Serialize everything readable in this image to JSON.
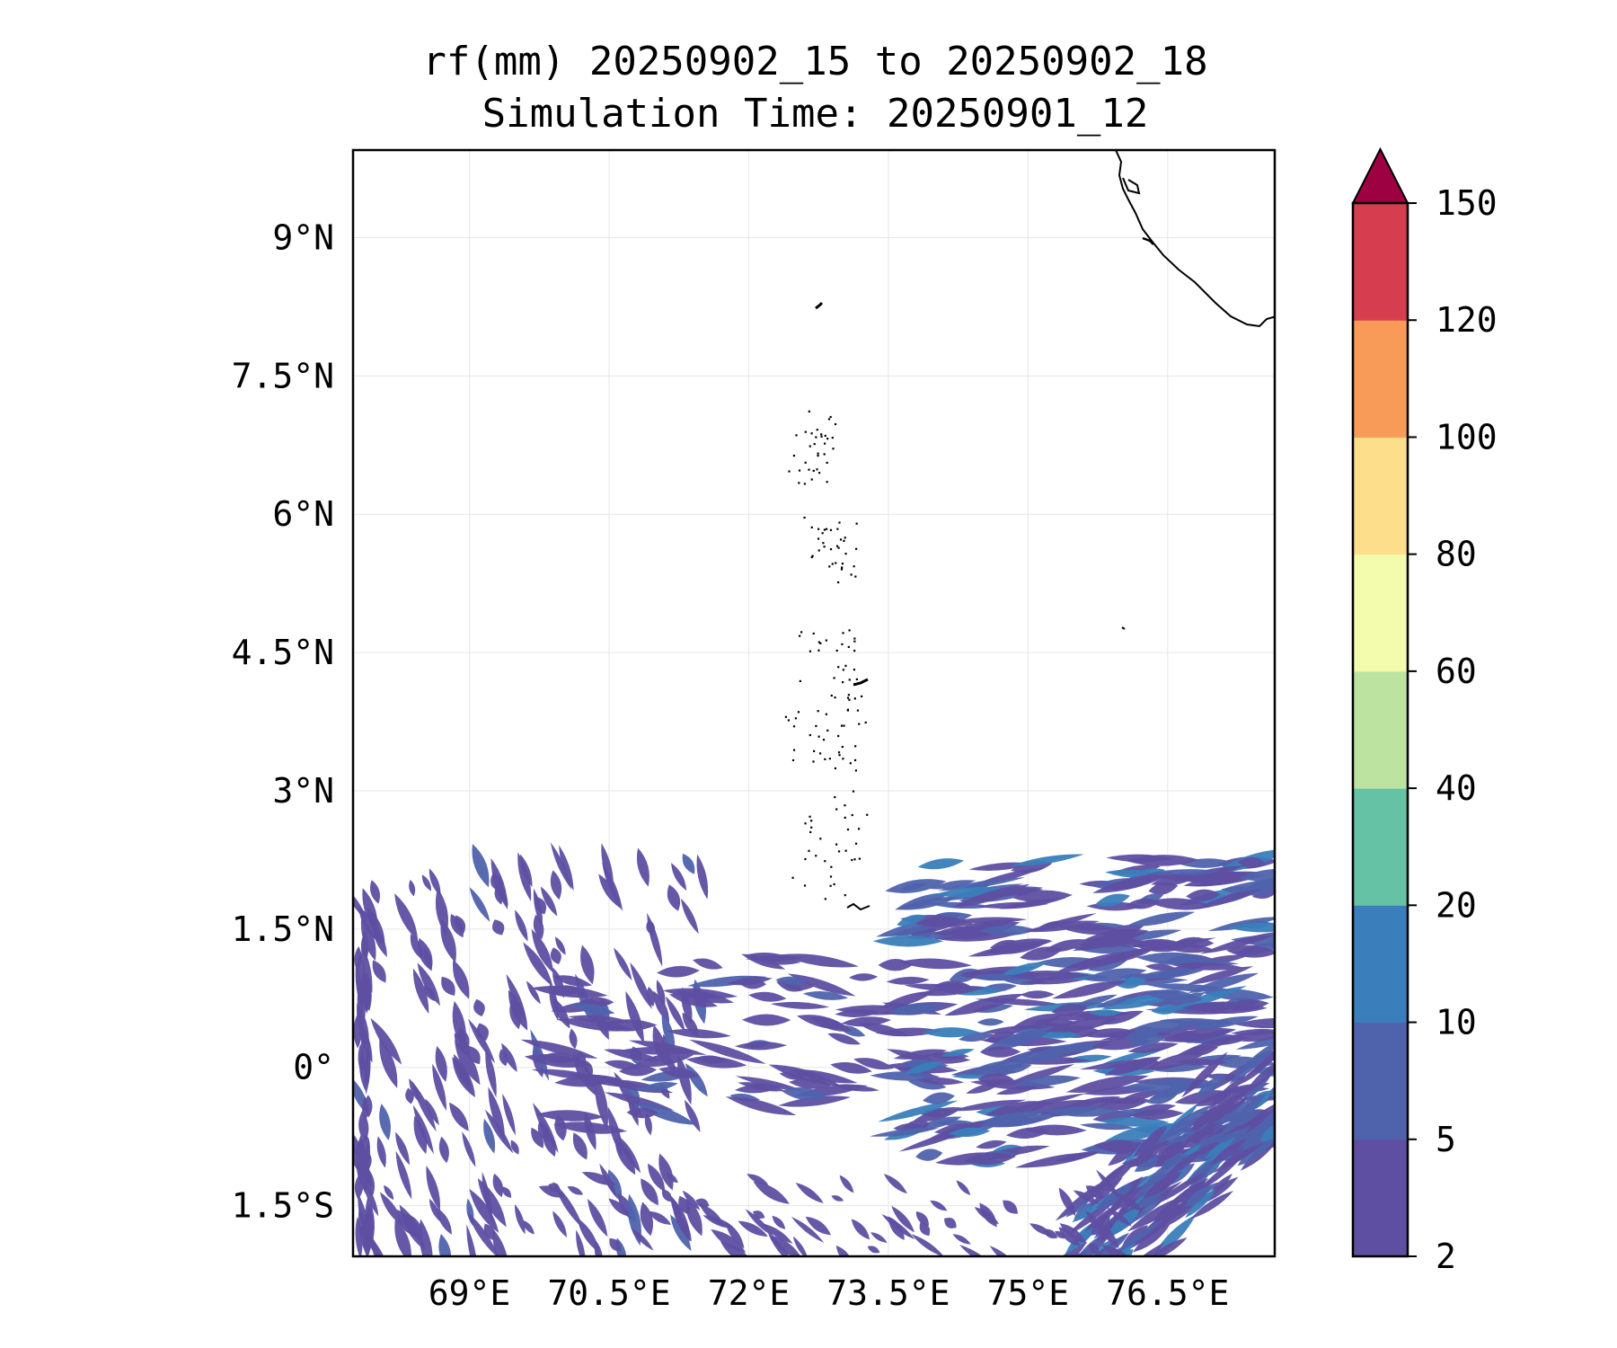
{
  "title": {
    "line1": "rf(mm) 20250902_15 to 20250902_18",
    "line2": "Simulation Time: 20250901_12"
  },
  "map": {
    "lon_range": [
      67.75,
      77.65
    ],
    "lat_range": [
      -2.05,
      9.95
    ],
    "lon_ticks": [
      {
        "value": 69,
        "label": "69°E"
      },
      {
        "value": 70.5,
        "label": "70.5°E"
      },
      {
        "value": 72,
        "label": "72°E"
      },
      {
        "value": 73.5,
        "label": "73.5°E"
      },
      {
        "value": 75,
        "label": "75°E"
      },
      {
        "value": 76.5,
        "label": "76.5°E"
      }
    ],
    "lat_ticks": [
      {
        "value": 9,
        "label": "9°N"
      },
      {
        "value": 7.5,
        "label": "7.5°N"
      },
      {
        "value": 6,
        "label": "6°N"
      },
      {
        "value": 4.5,
        "label": "4.5°N"
      },
      {
        "value": 3,
        "label": "3°N"
      },
      {
        "value": 1.5,
        "label": "1.5°N"
      },
      {
        "value": 0,
        "label": "0°"
      },
      {
        "value": -1.5,
        "label": "1.5°S"
      }
    ],
    "gridlines": true,
    "coastline": "India southern tip (top-right corner)",
    "islands": "Maldives atolls along ~73°E"
  },
  "colorbar": {
    "levels": [
      "2",
      "5",
      "10",
      "20",
      "40",
      "60",
      "80",
      "100",
      "120",
      "150"
    ],
    "colors": [
      "#5e4fa2",
      "#4f63ad",
      "#3a7ebb",
      "#66c2a5",
      "#bce4a0",
      "#f3fbac",
      "#fddf8b",
      "#f99b58",
      "#d63d4f"
    ],
    "extend_color": "#9e0142",
    "extend": "max"
  }
}
